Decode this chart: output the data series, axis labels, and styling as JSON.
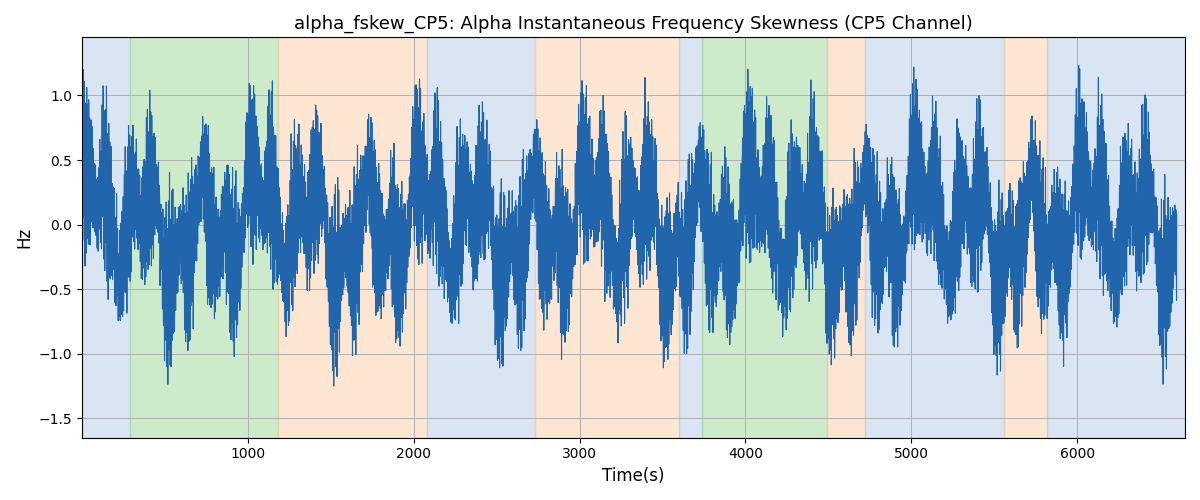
{
  "title": "alpha_fskew_CP5: Alpha Instantaneous Frequency Skewness (CP5 Channel)",
  "xlabel": "Time(s)",
  "ylabel": "Hz",
  "xlim": [
    0,
    6650
  ],
  "ylim": [
    -1.65,
    1.45
  ],
  "yticks": [
    -1.5,
    -1.0,
    -0.5,
    0.0,
    0.5,
    1.0
  ],
  "xticks": [
    1000,
    2000,
    3000,
    4000,
    5000,
    6000
  ],
  "line_color": "#2166ac",
  "line_width": 0.8,
  "background_color": "#ffffff",
  "grid_color": "#b0b0b0",
  "bands": [
    {
      "xmin": 0,
      "xmax": 290,
      "color": "#aec6e8",
      "alpha": 0.45
    },
    {
      "xmin": 290,
      "xmax": 1180,
      "color": "#90d48a",
      "alpha": 0.45
    },
    {
      "xmin": 1180,
      "xmax": 2080,
      "color": "#f9c89a",
      "alpha": 0.45
    },
    {
      "xmin": 2080,
      "xmax": 2730,
      "color": "#aec6e8",
      "alpha": 0.45
    },
    {
      "xmin": 2730,
      "xmax": 3600,
      "color": "#f9c89a",
      "alpha": 0.45
    },
    {
      "xmin": 3600,
      "xmax": 3740,
      "color": "#aec6e8",
      "alpha": 0.45
    },
    {
      "xmin": 3740,
      "xmax": 4490,
      "color": "#90d48a",
      "alpha": 0.45
    },
    {
      "xmin": 4490,
      "xmax": 4720,
      "color": "#f9c89a",
      "alpha": 0.45
    },
    {
      "xmin": 4720,
      "xmax": 5560,
      "color": "#aec6e8",
      "alpha": 0.45
    },
    {
      "xmin": 5560,
      "xmax": 5820,
      "color": "#f9c89a",
      "alpha": 0.45
    },
    {
      "xmin": 5820,
      "xmax": 6650,
      "color": "#aec6e8",
      "alpha": 0.45
    }
  ],
  "seed": 42,
  "n_points": 6600,
  "time_start": 0,
  "time_end": 6600
}
